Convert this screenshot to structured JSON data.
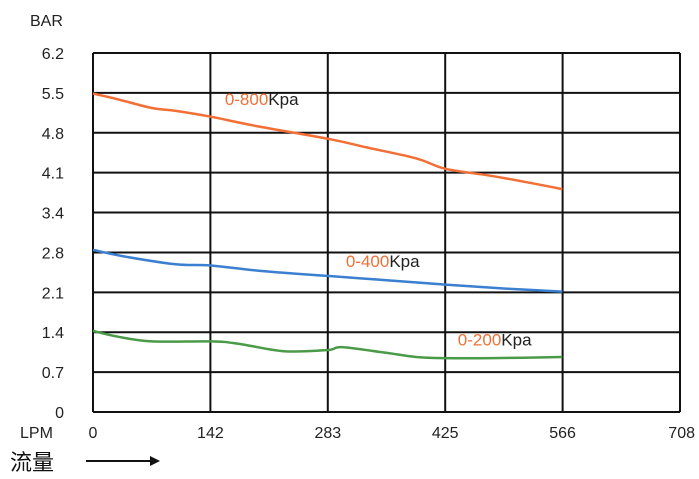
{
  "chart_data": {
    "type": "line",
    "title": "",
    "ylabel": "BAR",
    "xlabel": "LPM",
    "x_caption": "流量",
    "xlim": [
      0,
      708
    ],
    "ylim": [
      0,
      6.2
    ],
    "x_ticks": [
      "0",
      "142",
      "283",
      "425",
      "566",
      "708"
    ],
    "y_ticks": [
      "6.2",
      "5.5",
      "4.8",
      "4.1",
      "3.4",
      "2.8",
      "2.1",
      "1.4",
      "0.7",
      "0"
    ],
    "grid": true,
    "series": [
      {
        "name": "0-800Kpa",
        "label_range": "0-800",
        "label_unit": "Kpa",
        "label_at": [
          159,
          5.3
        ],
        "color": "#f26f36",
        "x": [
          0,
          30,
          71,
          100,
          142,
          200,
          283,
          330,
          390,
          425,
          480,
          530,
          566
        ],
        "y": [
          5.5,
          5.4,
          5.25,
          5.2,
          5.1,
          4.93,
          4.72,
          4.57,
          4.38,
          4.2,
          4.08,
          3.95,
          3.85
        ]
      },
      {
        "name": "0-400Kpa",
        "label_range": "0-400",
        "label_unit": "Kpa",
        "label_at": [
          305,
          2.5
        ],
        "color": "#3b7fd0",
        "x": [
          0,
          40,
          100,
          142,
          200,
          283,
          350,
          425,
          500,
          566
        ],
        "y": [
          2.8,
          2.68,
          2.55,
          2.53,
          2.44,
          2.35,
          2.28,
          2.2,
          2.13,
          2.08
        ]
      },
      {
        "name": "0-200Kpa",
        "label_range": "0-200",
        "label_unit": "Kpa",
        "label_at": [
          440,
          1.15
        ],
        "color": "#4a9a48",
        "x": [
          0,
          30,
          71,
          142,
          175,
          230,
          283,
          300,
          350,
          390,
          425,
          480,
          566
        ],
        "y": [
          1.4,
          1.3,
          1.22,
          1.22,
          1.18,
          1.05,
          1.07,
          1.12,
          1.03,
          0.95,
          0.93,
          0.93,
          0.95
        ]
      }
    ],
    "annotation_colors": {
      "range": "#f26f36",
      "unit": "#222222"
    }
  }
}
